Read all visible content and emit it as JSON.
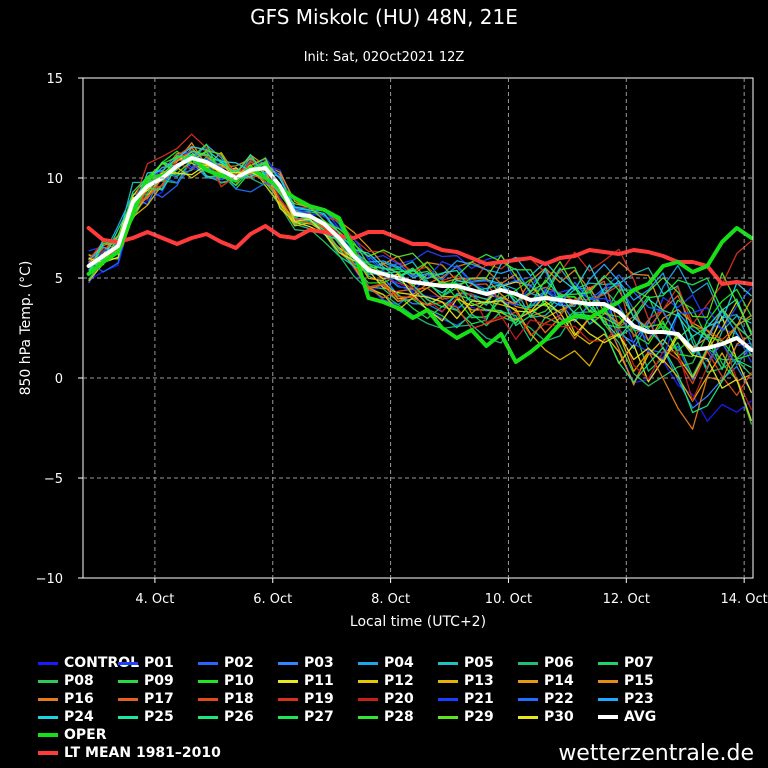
{
  "header": {
    "title": "GFS Miskolc (HU) 48N, 21E",
    "subtitle": "Init: Sat, 02Oct2021 12Z"
  },
  "credit": "wetterzentrale.de",
  "chart_data": {
    "type": "line",
    "title": "GFS Miskolc (HU) 48N, 21E",
    "subtitle": "Init: Sat, 02Oct2021 12Z",
    "xlabel": "Local time (UTC+2)",
    "ylabel": "850 hPa Temp. (°C)",
    "xlim": [
      2.78,
      14.15
    ],
    "ylim": [
      -10,
      15
    ],
    "yticks": [
      15,
      10,
      5,
      0,
      -5,
      -10
    ],
    "yticklabels": [
      "15",
      "10",
      "5",
      "0",
      "−5",
      "−10"
    ],
    "xticks": [
      4,
      6,
      8,
      10,
      12,
      14
    ],
    "xticklabels": [
      "4. Oct",
      "6. Oct",
      "8. Oct",
      "10. Oct",
      "12. Oct",
      "14. Oct"
    ],
    "grid": true,
    "x": [
      2.875,
      3.125,
      3.375,
      3.625,
      3.875,
      4.125,
      4.375,
      4.625,
      4.875,
      5.125,
      5.375,
      5.625,
      5.875,
      6.125,
      6.375,
      6.625,
      6.875,
      7.125,
      7.375,
      7.625,
      7.875,
      8.125,
      8.375,
      8.625,
      8.875,
      9.125,
      9.375,
      9.625,
      9.875,
      10.125,
      10.375,
      10.625,
      10.875,
      11.125,
      11.375,
      11.625,
      11.875,
      12.125,
      12.375,
      12.625,
      12.875,
      13.125,
      13.375,
      13.625,
      13.875,
      14.125
    ],
    "highlight_series": [
      {
        "name": "LT MEAN 1981-2010",
        "color": "#ff3b3b",
        "width": 4,
        "values": [
          7.5,
          6.9,
          6.8,
          7.0,
          7.3,
          7.0,
          6.7,
          7.0,
          7.2,
          6.8,
          6.5,
          7.2,
          7.6,
          7.1,
          7.0,
          7.4,
          7.3,
          7.1,
          7.0,
          7.3,
          7.3,
          7.0,
          6.7,
          6.7,
          6.4,
          6.3,
          6.0,
          5.7,
          5.8,
          5.9,
          6.0,
          5.7,
          6.0,
          6.1,
          6.4,
          6.3,
          6.2,
          6.4,
          6.3,
          6.1,
          5.8,
          5.8,
          5.6,
          4.7,
          4.8,
          4.7
        ]
      },
      {
        "name": "OPER",
        "color": "#18e018",
        "width": 4,
        "values": [
          5.2,
          5.8,
          6.3,
          8.2,
          10.0,
          10.1,
          10.6,
          11.0,
          10.4,
          10.1,
          9.9,
          10.5,
          10.0,
          9.5,
          9.0,
          8.6,
          8.4,
          8.0,
          6.4,
          4.0,
          3.8,
          3.5,
          3.0,
          3.4,
          2.5,
          2.0,
          2.4,
          1.6,
          2.2,
          0.8,
          1.3,
          1.9,
          2.7,
          3.1,
          3.0,
          3.4,
          3.8,
          4.4,
          4.7,
          5.6,
          5.8,
          5.3,
          5.6,
          6.8,
          7.5,
          7.0
        ]
      },
      {
        "name": "AVG",
        "color": "#ffffff",
        "width": 4,
        "values": [
          5.6,
          6.1,
          6.6,
          8.8,
          9.6,
          10.0,
          10.6,
          11.0,
          10.8,
          10.4,
          10.0,
          10.4,
          10.5,
          9.6,
          8.2,
          8.1,
          7.7,
          7.0,
          6.1,
          5.4,
          5.2,
          5.0,
          4.8,
          4.7,
          4.6,
          4.6,
          4.4,
          4.2,
          4.4,
          4.2,
          3.9,
          4.0,
          3.9,
          3.8,
          3.7,
          3.7,
          3.3,
          2.6,
          2.3,
          2.3,
          2.2,
          1.4,
          1.5,
          1.7,
          2.0,
          1.4
        ]
      }
    ],
    "legend": {
      "placement": "bottom",
      "entries": [
        {
          "label": "CONTROL",
          "color": "#1a1aff"
        },
        {
          "label": "P01",
          "color": "#1f40ff"
        },
        {
          "label": "P02",
          "color": "#2a63ff"
        },
        {
          "label": "P03",
          "color": "#2f86ff"
        },
        {
          "label": "P04",
          "color": "#1ea7e6"
        },
        {
          "label": "P05",
          "color": "#1fc2c2"
        },
        {
          "label": "P06",
          "color": "#1fbf7a"
        },
        {
          "label": "P07",
          "color": "#1ed36b"
        },
        {
          "label": "P08",
          "color": "#2fc85a"
        },
        {
          "label": "P09",
          "color": "#28d94a"
        },
        {
          "label": "P10",
          "color": "#1ee81e"
        },
        {
          "label": "P11",
          "color": "#e8e81e"
        },
        {
          "label": "P12",
          "color": "#e6c800"
        },
        {
          "label": "P13",
          "color": "#e6b400"
        },
        {
          "label": "P14",
          "color": "#e69a10"
        },
        {
          "label": "P15",
          "color": "#e68a1e"
        },
        {
          "label": "P16",
          "color": "#e67a1e"
        },
        {
          "label": "P17",
          "color": "#e6601e"
        },
        {
          "label": "P18",
          "color": "#e6481e"
        },
        {
          "label": "P19",
          "color": "#d9301e"
        },
        {
          "label": "P20",
          "color": "#c81e1e"
        },
        {
          "label": "P21",
          "color": "#1e3cff"
        },
        {
          "label": "P22",
          "color": "#1e6eff"
        },
        {
          "label": "P23",
          "color": "#1eaaff"
        },
        {
          "label": "P24",
          "color": "#1ed2e6"
        },
        {
          "label": "P25",
          "color": "#1ee6a0"
        },
        {
          "label": "P26",
          "color": "#1ee678"
        },
        {
          "label": "P27",
          "color": "#1ee650"
        },
        {
          "label": "P28",
          "color": "#32e632"
        },
        {
          "label": "P29",
          "color": "#5ae61e"
        },
        {
          "label": "P30",
          "color": "#e6e61e"
        },
        {
          "label": "AVG",
          "color": "#ffffff"
        },
        {
          "label": "OPER",
          "color": "#18e018"
        },
        {
          "label": "LT MEAN 1981–2010",
          "color": "#ff3b3b"
        }
      ]
    }
  }
}
